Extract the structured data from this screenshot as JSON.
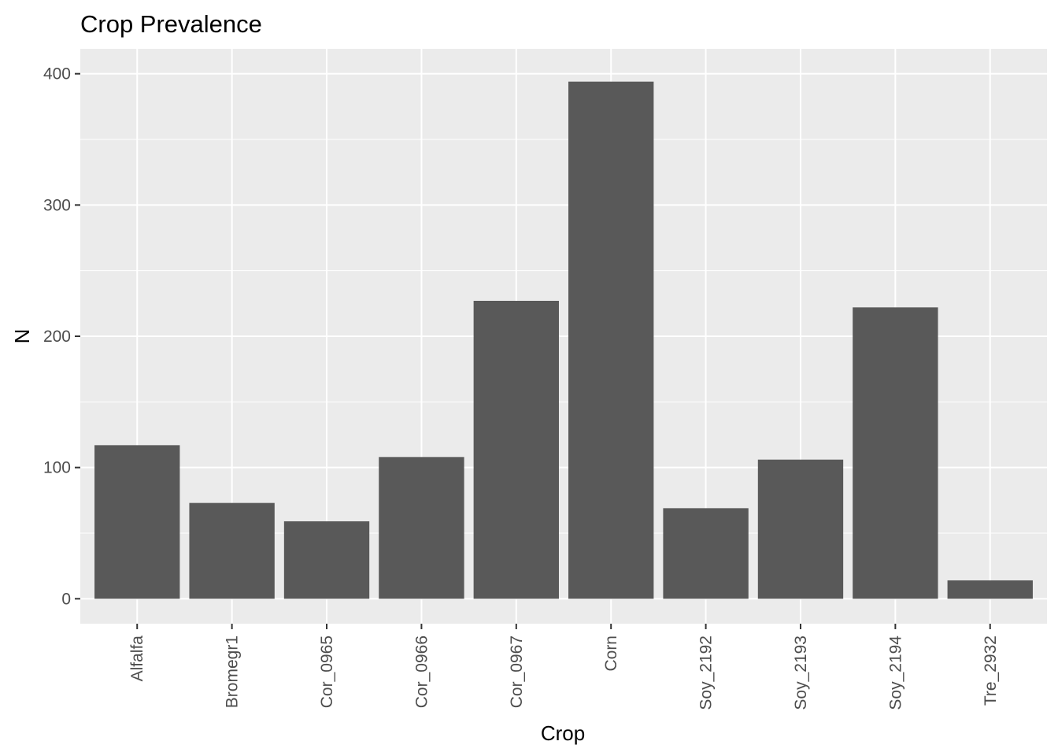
{
  "chart_data": {
    "type": "bar",
    "title": "Crop Prevalence",
    "xlabel": "Crop",
    "ylabel": "N",
    "categories": [
      "Alfalfa",
      "Bromegr1",
      "Cor_0965",
      "Cor_0966",
      "Cor_0967",
      "Corn",
      "Soy_2192",
      "Soy_2193",
      "Soy_2194",
      "Tre_2932"
    ],
    "values": [
      117,
      73,
      59,
      108,
      227,
      394,
      69,
      106,
      222,
      14
    ],
    "ylim": [
      -19,
      419
    ],
    "yticks": [
      0,
      100,
      200,
      300,
      400
    ],
    "grid": true,
    "colors": {
      "bar": "#595959",
      "panel": "#ebebeb",
      "grid": "#ffffff",
      "tick_text": "#4d4d4d"
    }
  }
}
